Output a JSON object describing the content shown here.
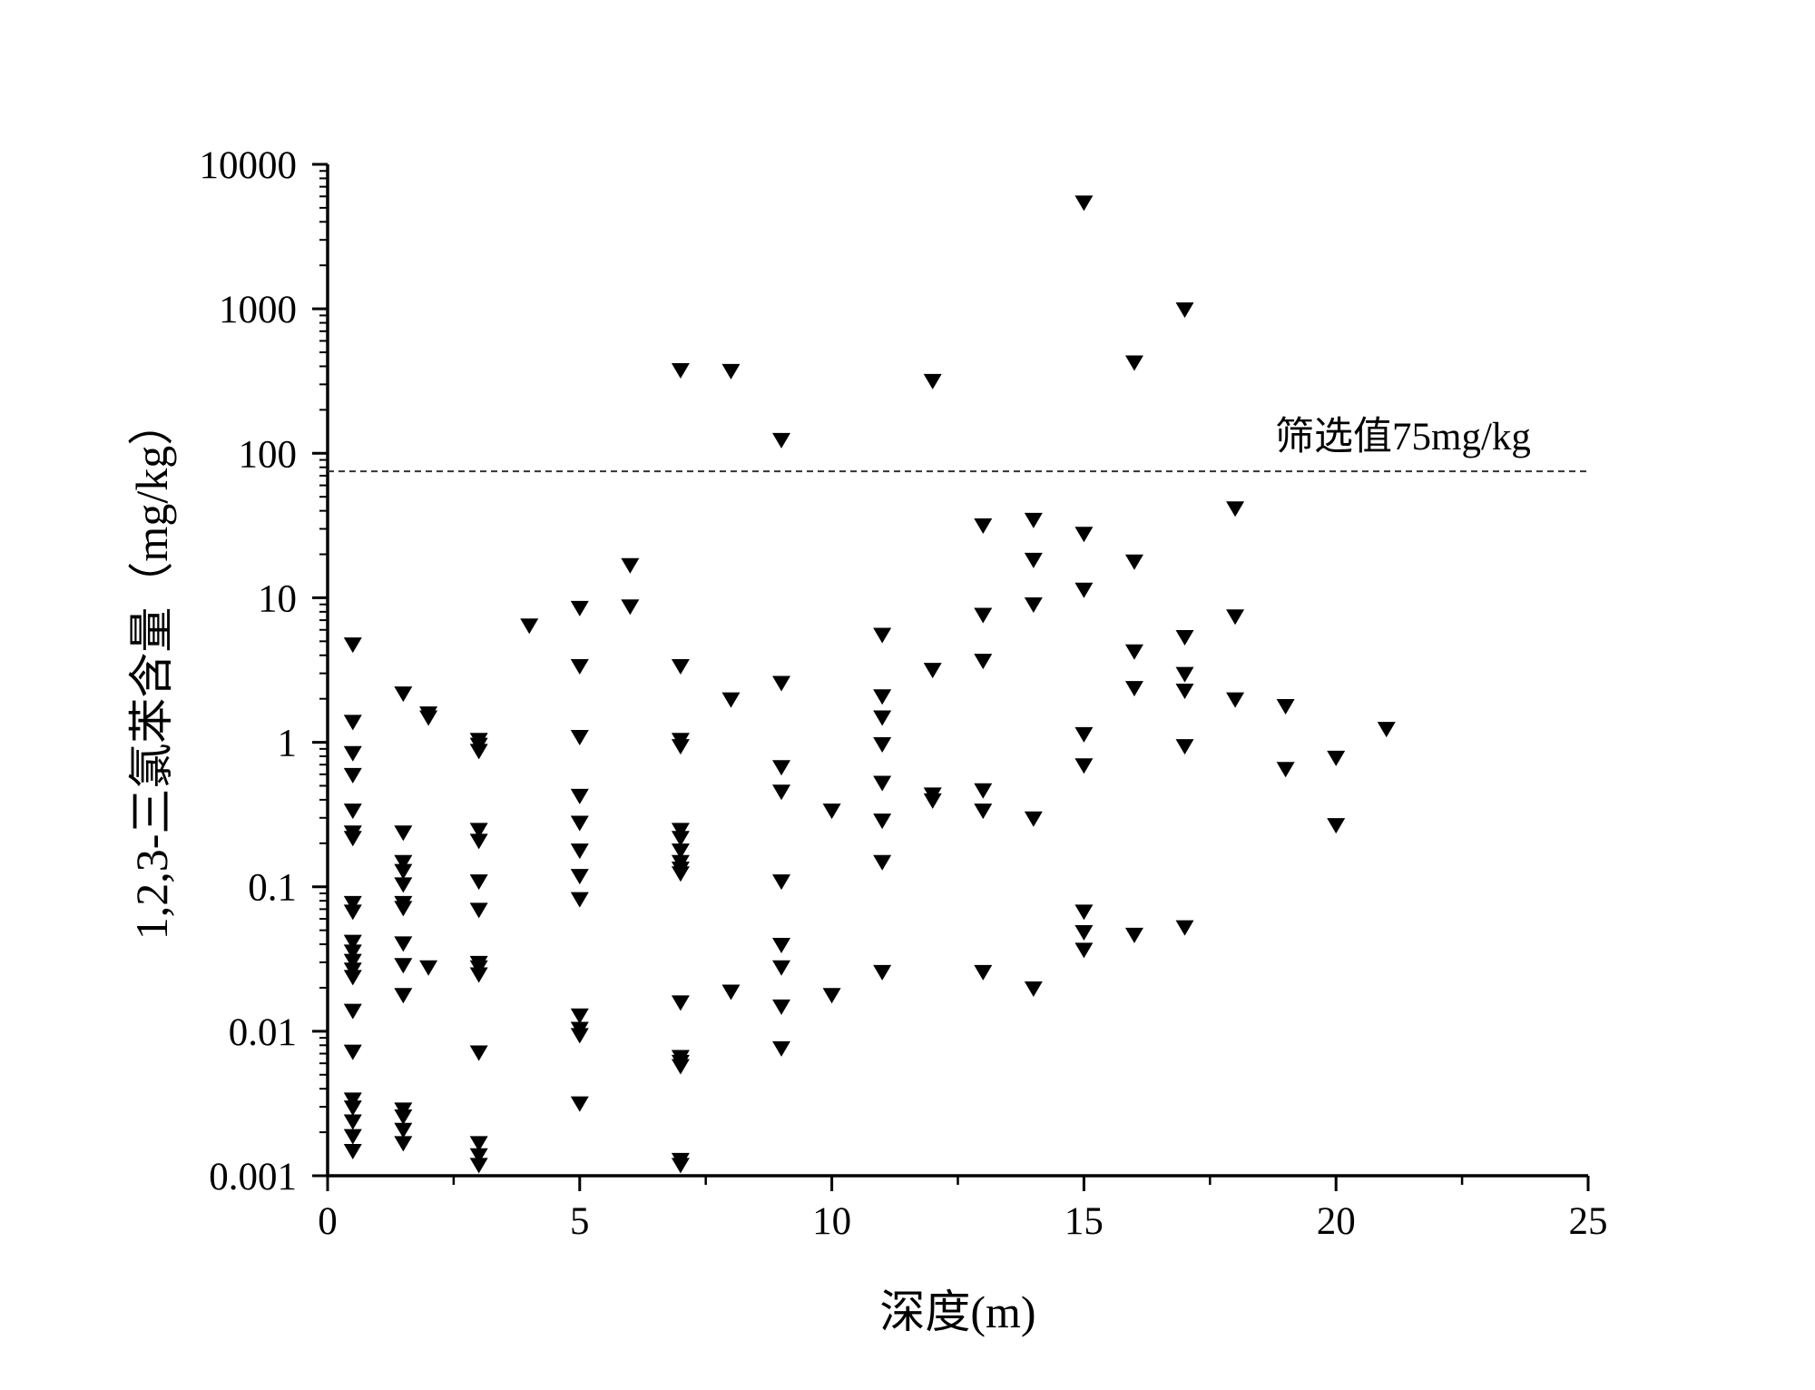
{
  "chart_data": {
    "type": "scatter",
    "xlabel": "深度(m)",
    "ylabel": "1,2,3-三氯苯含量（mg/kg）",
    "xlim": [
      0,
      25
    ],
    "ylim": [
      0.001,
      10000
    ],
    "yscale": "log",
    "x_ticks": [
      "0",
      "5",
      "10",
      "15",
      "20",
      "25"
    ],
    "y_ticks": [
      "0.001",
      "0.01",
      "0.1",
      "1",
      "10",
      "100",
      "1000",
      "10000"
    ],
    "grid": false,
    "marker": "down-triangle",
    "marker_color": "#000000",
    "reference_line": {
      "value": 75,
      "style": "dashed",
      "label": "筛选值75mg/kg"
    },
    "points": [
      [
        0.5,
        4.8
      ],
      [
        0.5,
        1.4
      ],
      [
        0.5,
        0.85
      ],
      [
        0.5,
        0.6
      ],
      [
        0.5,
        0.34
      ],
      [
        0.5,
        0.24
      ],
      [
        0.5,
        0.22
      ],
      [
        0.5,
        0.078
      ],
      [
        0.5,
        0.068
      ],
      [
        0.5,
        0.042
      ],
      [
        0.5,
        0.036
      ],
      [
        0.5,
        0.031
      ],
      [
        0.5,
        0.027
      ],
      [
        0.5,
        0.024
      ],
      [
        0.5,
        0.014
      ],
      [
        0.5,
        0.0073
      ],
      [
        0.5,
        0.0034
      ],
      [
        0.5,
        0.003
      ],
      [
        0.5,
        0.0024
      ],
      [
        0.5,
        0.0019
      ],
      [
        0.5,
        0.0015
      ],
      [
        1.5,
        2.2
      ],
      [
        1.5,
        0.24
      ],
      [
        1.5,
        0.15
      ],
      [
        1.5,
        0.13
      ],
      [
        1.5,
        0.105
      ],
      [
        1.5,
        0.078
      ],
      [
        1.5,
        0.072
      ],
      [
        1.5,
        0.041
      ],
      [
        1.5,
        0.029
      ],
      [
        1.5,
        0.018
      ],
      [
        1.5,
        0.0029
      ],
      [
        1.5,
        0.0026
      ],
      [
        1.5,
        0.0021
      ],
      [
        1.5,
        0.0017
      ],
      [
        2,
        1.6
      ],
      [
        2,
        1.5
      ],
      [
        2,
        0.028
      ],
      [
        3,
        1.05
      ],
      [
        3,
        0.97
      ],
      [
        3,
        0.88
      ],
      [
        3,
        0.25
      ],
      [
        3,
        0.21
      ],
      [
        3,
        0.11
      ],
      [
        3,
        0.07
      ],
      [
        3,
        0.03
      ],
      [
        3,
        0.028
      ],
      [
        3,
        0.025
      ],
      [
        3,
        0.0072
      ],
      [
        3,
        0.0017
      ],
      [
        3,
        0.0014
      ],
      [
        3,
        0.0012
      ],
      [
        4,
        6.5
      ],
      [
        5,
        8.6
      ],
      [
        5,
        3.4
      ],
      [
        5,
        1.1
      ],
      [
        5,
        0.43
      ],
      [
        5,
        0.28
      ],
      [
        5,
        0.18
      ],
      [
        5,
        0.12
      ],
      [
        5,
        0.083
      ],
      [
        5,
        0.013
      ],
      [
        5,
        0.0105
      ],
      [
        5,
        0.0095
      ],
      [
        5,
        0.0032
      ],
      [
        6,
        17
      ],
      [
        6,
        8.8
      ],
      [
        7,
        380
      ],
      [
        7,
        3.4
      ],
      [
        7,
        1.05
      ],
      [
        7,
        0.95
      ],
      [
        7,
        0.25
      ],
      [
        7,
        0.22
      ],
      [
        7,
        0.18
      ],
      [
        7,
        0.15
      ],
      [
        7,
        0.135
      ],
      [
        7,
        0.125
      ],
      [
        7,
        0.016
      ],
      [
        7,
        0.0067
      ],
      [
        7,
        0.0062
      ],
      [
        7,
        0.0058
      ],
      [
        7,
        0.0013
      ],
      [
        7,
        0.0012
      ],
      [
        8,
        375
      ],
      [
        8,
        2.0
      ],
      [
        8,
        0.019
      ],
      [
        9,
        125
      ],
      [
        9,
        2.6
      ],
      [
        9,
        0.68
      ],
      [
        9,
        0.46
      ],
      [
        9,
        0.11
      ],
      [
        9,
        0.04
      ],
      [
        9,
        0.028
      ],
      [
        9,
        0.015
      ],
      [
        9,
        0.0077
      ],
      [
        10,
        0.34
      ],
      [
        10,
        0.018
      ],
      [
        11,
        5.6
      ],
      [
        11,
        2.1
      ],
      [
        11,
        1.5
      ],
      [
        11,
        0.98
      ],
      [
        11,
        0.53
      ],
      [
        11,
        0.29
      ],
      [
        11,
        0.15
      ],
      [
        11,
        0.026
      ],
      [
        12,
        320
      ],
      [
        12,
        3.2
      ],
      [
        12,
        0.44
      ],
      [
        12,
        0.4
      ],
      [
        13,
        32
      ],
      [
        13,
        7.7
      ],
      [
        13,
        3.7
      ],
      [
        13,
        0.47
      ],
      [
        13,
        0.34
      ],
      [
        13,
        0.026
      ],
      [
        14,
        35
      ],
      [
        14,
        18.5
      ],
      [
        14,
        9.1
      ],
      [
        14,
        0.3
      ],
      [
        14,
        0.02
      ],
      [
        15,
        5500
      ],
      [
        15,
        28
      ],
      [
        15,
        11.5
      ],
      [
        15,
        1.15
      ],
      [
        15,
        0.7
      ],
      [
        15,
        0.068
      ],
      [
        15,
        0.049
      ],
      [
        15,
        0.037
      ],
      [
        16,
        430
      ],
      [
        16,
        18
      ],
      [
        16,
        4.3
      ],
      [
        16,
        2.4
      ],
      [
        16,
        0.047
      ],
      [
        17,
        1000
      ],
      [
        17,
        5.4
      ],
      [
        17,
        3.0
      ],
      [
        17,
        2.3
      ],
      [
        17,
        0.95
      ],
      [
        17,
        0.053
      ],
      [
        18,
        42
      ],
      [
        18,
        7.5
      ],
      [
        18,
        2.0
      ],
      [
        19,
        1.8
      ],
      [
        19,
        0.66
      ],
      [
        20,
        0.79
      ],
      [
        20,
        0.27
      ],
      [
        21,
        1.25
      ]
    ]
  }
}
